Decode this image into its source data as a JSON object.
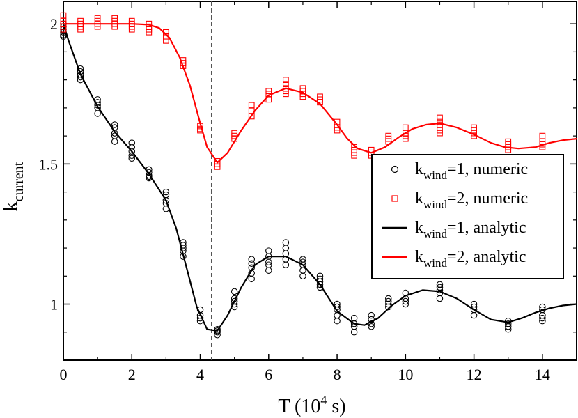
{
  "chart_data": {
    "type": "scatter",
    "xlabel": "T (10",
    "xlabel_sup": "4",
    "xlabel_tail": " s)",
    "ylabel": "k",
    "ylabel_sub": "current",
    "xlim": [
      0,
      15
    ],
    "ylim": [
      0.8,
      2.08
    ],
    "x_ticks": [
      0,
      2,
      4,
      6,
      8,
      10,
      12,
      14
    ],
    "x_tick_labels": [
      "0",
      "2",
      "4",
      "6",
      "8",
      "10",
      "12",
      "14"
    ],
    "y_ticks": [
      1,
      1.5,
      2
    ],
    "y_tick_labels": [
      "1",
      "1.5",
      "2"
    ],
    "vline_x": 4.33,
    "legend_position": "right",
    "series": [
      {
        "name": "kwind=1, numeric",
        "legend_main": "k",
        "legend_sub": "wind",
        "legend_rest": "=1, numeric",
        "kind": "markers",
        "marker": "circle",
        "color": "#000000",
        "x": [
          0,
          0,
          0,
          0,
          0,
          0,
          0.5,
          0.5,
          0.5,
          0.5,
          0.5,
          1,
          1,
          1,
          1,
          1,
          1.5,
          1.5,
          1.5,
          1.5,
          1.5,
          2,
          2,
          2,
          2,
          2,
          2.5,
          2.5,
          2.5,
          2.5,
          2.5,
          3,
          3,
          3,
          3,
          3,
          3.5,
          3.5,
          3.5,
          3.5,
          3.5,
          4,
          4,
          4,
          4,
          4.5,
          4.5,
          4.5,
          4.5,
          5,
          5,
          5,
          5,
          5,
          5.5,
          5.5,
          5.5,
          5.5,
          5.5,
          6,
          6,
          6,
          6,
          6,
          6.5,
          6.5,
          6.5,
          6.5,
          6.5,
          7,
          7,
          7,
          7,
          7,
          7.5,
          7.5,
          7.5,
          7.5,
          7.5,
          8,
          8,
          8,
          8,
          8,
          8.5,
          8.5,
          8.5,
          8.5,
          9,
          9,
          9,
          9,
          9.5,
          9.5,
          9.5,
          9.5,
          10,
          10,
          10,
          10,
          11,
          11,
          11,
          11,
          11,
          12,
          12,
          12,
          12,
          13,
          13,
          13,
          13,
          14,
          14,
          14,
          14,
          14
        ],
        "y": [
          1.96,
          1.97,
          1.98,
          1.99,
          2.0,
          1.955,
          1.81,
          1.82,
          1.83,
          1.84,
          1.8,
          1.68,
          1.7,
          1.71,
          1.72,
          1.73,
          1.58,
          1.6,
          1.61,
          1.63,
          1.64,
          1.52,
          1.53,
          1.545,
          1.56,
          1.575,
          1.45,
          1.455,
          1.46,
          1.47,
          1.48,
          1.34,
          1.36,
          1.37,
          1.39,
          1.4,
          1.17,
          1.19,
          1.2,
          1.21,
          1.22,
          0.94,
          0.95,
          0.96,
          0.98,
          0.89,
          0.9,
          0.905,
          0.91,
          0.99,
          1.0,
          1.01,
          1.02,
          1.045,
          1.09,
          1.11,
          1.13,
          1.145,
          1.16,
          1.12,
          1.14,
          1.15,
          1.17,
          1.19,
          1.14,
          1.16,
          1.18,
          1.2,
          1.22,
          1.1,
          1.12,
          1.14,
          1.15,
          1.16,
          1.06,
          1.07,
          1.08,
          1.09,
          1.1,
          0.94,
          0.96,
          0.98,
          0.99,
          1.0,
          0.9,
          0.92,
          0.93,
          0.95,
          0.92,
          0.93,
          0.945,
          0.96,
          0.99,
          1.0,
          1.01,
          1.02,
          1.0,
          1.01,
          1.02,
          1.04,
          1.02,
          1.04,
          1.05,
          1.06,
          1.07,
          0.96,
          0.98,
          0.99,
          1.0,
          0.91,
          0.92,
          0.93,
          0.94,
          0.94,
          0.95,
          0.96,
          0.98,
          0.99
        ]
      },
      {
        "name": "kwind=2, numeric",
        "legend_main": "k",
        "legend_sub": "wind",
        "legend_rest": "=2, numeric",
        "kind": "markers",
        "marker": "square",
        "color": "#ff0000",
        "x": [
          0,
          0,
          0,
          0,
          0,
          0.5,
          0.5,
          0.5,
          0.5,
          1,
          1,
          1,
          1,
          1.5,
          1.5,
          1.5,
          1.5,
          2,
          2,
          2,
          2,
          2.5,
          2.5,
          2.5,
          2.5,
          3,
          3,
          3,
          3.5,
          3.5,
          3.5,
          4,
          4,
          4,
          4.5,
          4.5,
          4.5,
          5,
          5,
          5,
          5.5,
          5.5,
          5.5,
          6,
          6,
          6,
          6.5,
          6.5,
          6.5,
          6.5,
          6.5,
          7,
          7,
          7,
          7,
          7.5,
          7.5,
          7.5,
          8,
          8,
          8,
          8.5,
          8.5,
          8.5,
          8.5,
          9,
          9,
          9,
          9.5,
          9.5,
          9.5,
          10,
          10,
          10,
          10,
          11,
          11,
          11,
          11,
          11,
          12,
          12,
          12,
          12,
          13,
          13,
          13,
          13,
          14,
          14,
          14,
          14
        ],
        "y": [
          1.98,
          1.99,
          2.0,
          2.01,
          2.03,
          1.98,
          1.99,
          2.0,
          2.01,
          1.99,
          2.0,
          2.01,
          2.02,
          1.99,
          2.0,
          2.01,
          2.02,
          1.98,
          1.99,
          2.0,
          2.01,
          1.97,
          1.98,
          1.99,
          2.0,
          1.94,
          1.955,
          1.97,
          1.85,
          1.86,
          1.87,
          1.62,
          1.625,
          1.635,
          1.49,
          1.5,
          1.51,
          1.59,
          1.6,
          1.61,
          1.67,
          1.69,
          1.71,
          1.73,
          1.75,
          1.76,
          1.75,
          1.76,
          1.77,
          1.785,
          1.8,
          1.74,
          1.75,
          1.76,
          1.77,
          1.72,
          1.73,
          1.74,
          1.62,
          1.63,
          1.65,
          1.53,
          1.54,
          1.55,
          1.56,
          1.53,
          1.54,
          1.55,
          1.58,
          1.59,
          1.6,
          1.59,
          1.6,
          1.61,
          1.63,
          1.61,
          1.62,
          1.64,
          1.65,
          1.665,
          1.6,
          1.61,
          1.62,
          1.63,
          1.55,
          1.56,
          1.57,
          1.58,
          1.56,
          1.57,
          1.58,
          1.6
        ]
      },
      {
        "name": "kwind=1, analytic",
        "legend_main": "k",
        "legend_sub": "wind",
        "legend_rest": "=1, analytic",
        "kind": "line",
        "color": "#000000",
        "x": [
          0,
          0.15,
          0.5,
          1,
          1.5,
          2,
          2.5,
          3,
          3.3,
          3.6,
          3.9,
          4.2,
          4.5,
          4.8,
          5.2,
          5.6,
          6.0,
          6.5,
          7.0,
          7.5,
          8.0,
          8.5,
          8.8,
          9.2,
          9.6,
          10.0,
          10.5,
          11.0,
          11.5,
          12.0,
          12.5,
          13.0,
          13.4,
          13.8,
          14.2,
          14.6,
          15.0
        ],
        "y": [
          2.0,
          1.94,
          1.82,
          1.705,
          1.615,
          1.545,
          1.465,
          1.37,
          1.27,
          1.13,
          0.99,
          0.91,
          0.905,
          0.96,
          1.06,
          1.14,
          1.17,
          1.17,
          1.14,
          1.07,
          0.975,
          0.93,
          0.925,
          0.95,
          0.995,
          1.03,
          1.05,
          1.045,
          1.02,
          0.98,
          0.945,
          0.935,
          0.95,
          0.97,
          0.985,
          0.995,
          1.0
        ]
      },
      {
        "name": "kwind=2, analytic",
        "legend_main": "k",
        "legend_sub": "wind",
        "legend_rest": "=2, analytic",
        "kind": "line",
        "color": "#ff0000",
        "x": [
          0,
          0.5,
          1,
          1.5,
          2,
          2.5,
          2.8,
          3.1,
          3.4,
          3.7,
          4.0,
          4.2,
          4.5,
          4.8,
          5.2,
          5.6,
          6.0,
          6.5,
          7.0,
          7.5,
          8.0,
          8.3,
          8.6,
          9.0,
          9.4,
          9.8,
          10.2,
          10.6,
          11.0,
          11.5,
          12.0,
          12.5,
          12.9,
          13.3,
          13.8,
          14.2,
          14.6,
          15.0
        ],
        "y": [
          2.0,
          2.0,
          2.0,
          2.0,
          2.0,
          1.997,
          1.985,
          1.95,
          1.88,
          1.78,
          1.645,
          1.56,
          1.505,
          1.54,
          1.62,
          1.69,
          1.745,
          1.77,
          1.755,
          1.715,
          1.64,
          1.59,
          1.555,
          1.54,
          1.56,
          1.595,
          1.625,
          1.64,
          1.645,
          1.63,
          1.605,
          1.575,
          1.56,
          1.555,
          1.56,
          1.575,
          1.585,
          1.59
        ]
      }
    ]
  }
}
